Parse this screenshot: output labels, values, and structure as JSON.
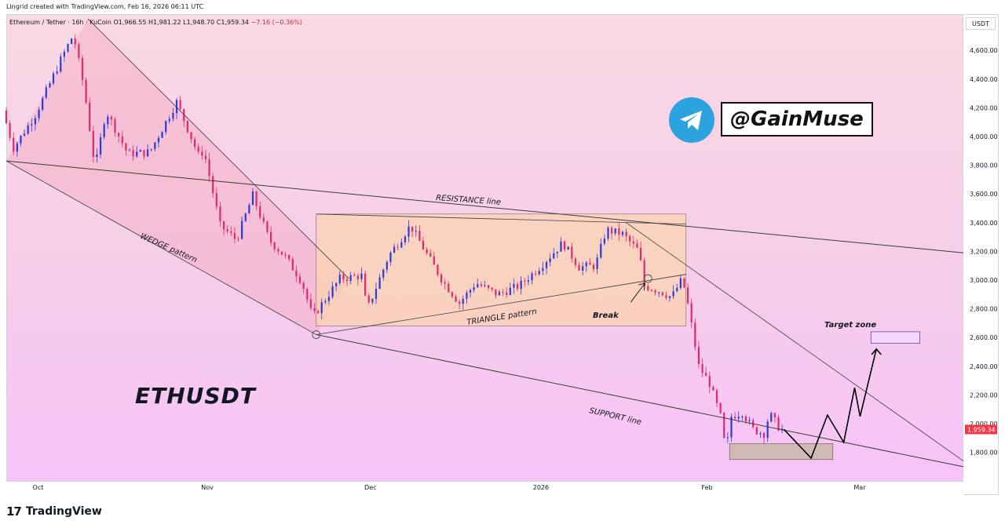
{
  "header": {
    "created_by": "Lingrid created with TradingView.com, Feb 16, 2026 06:11 UTC"
  },
  "symbol": {
    "name": "Ethereum / Tether · 16h · KuCoin",
    "open": "O1,966.55",
    "high": "H1,981.22",
    "low": "L1,948.70",
    "close": "C1,959.34",
    "change": "−7.16 (−0.36%)"
  },
  "price_axis": {
    "unit": "USDT",
    "current_price_label": "1,959.34",
    "current_price_color": "#f23645"
  },
  "telegram": {
    "handle": "@GainMuse",
    "icon": "telegram-icon",
    "color": "#2aa3df"
  },
  "footer": {
    "brand": "TradingView",
    "icon": "tradingview-logo"
  },
  "colors": {
    "up_candle": "#2a3bd6",
    "down_candle": "#e0286a",
    "wedge_fill": "#f4b1c6",
    "triangle_fill": "#fbd3b2",
    "support_box": "#c9b9a8"
  },
  "chart_data": {
    "type": "candlestick",
    "title": "ETHUSDT",
    "ylim": [
      1680,
      4760
    ],
    "y_ticks": [
      1800,
      2000,
      2200,
      2400,
      2600,
      2800,
      3000,
      3200,
      3400,
      3600,
      3800,
      4000,
      4200,
      4400,
      4600
    ],
    "y_tick_labels": [
      "1,800.00",
      "2,000.00",
      "2,200.00",
      "2,400.00",
      "2,600.00",
      "2,800.00",
      "3,000.00",
      "3,200.00",
      "3,400.00",
      "3,600.00",
      "3,800.00",
      "4,000.00",
      "4,200.00",
      "4,400.00",
      "4,600.00"
    ],
    "x_tick_labels": [
      "Oct",
      "Nov",
      "Dec",
      "2026",
      "Feb",
      "Mar"
    ],
    "x_tick_dates": [
      "2025-10-01",
      "2025-11-01",
      "2025-12-01",
      "2026-01-01",
      "2026-02-01",
      "2026-03-01"
    ],
    "x_range": [
      "2025-09-25",
      "2026-03-20"
    ],
    "price_path": [
      {
        "date": "2025-09-25",
        "price": 4180
      },
      {
        "date": "2025-09-27",
        "price": 3920
      },
      {
        "date": "2025-10-01",
        "price": 4150
      },
      {
        "date": "2025-10-06",
        "price": 4560
      },
      {
        "date": "2025-10-08",
        "price": 4710
      },
      {
        "date": "2025-10-10",
        "price": 4330
      },
      {
        "date": "2025-10-12",
        "price": 3780
      },
      {
        "date": "2025-10-14",
        "price": 4180
      },
      {
        "date": "2025-10-18",
        "price": 3880
      },
      {
        "date": "2025-10-22",
        "price": 3890
      },
      {
        "date": "2025-10-27",
        "price": 4240
      },
      {
        "date": "2025-10-31",
        "price": 3870
      },
      {
        "date": "2025-11-01",
        "price": 3900
      },
      {
        "date": "2025-11-04",
        "price": 3380
      },
      {
        "date": "2025-11-07",
        "price": 3280
      },
      {
        "date": "2025-11-10",
        "price": 3590
      },
      {
        "date": "2025-11-13",
        "price": 3280
      },
      {
        "date": "2025-11-16",
        "price": 3160
      },
      {
        "date": "2025-11-19",
        "price": 2990
      },
      {
        "date": "2025-11-21",
        "price": 2740
      },
      {
        "date": "2025-11-23",
        "price": 2850
      },
      {
        "date": "2025-11-26",
        "price": 3010
      },
      {
        "date": "2025-11-30",
        "price": 3030
      },
      {
        "date": "2025-12-01",
        "price": 2790
      },
      {
        "date": "2025-12-05",
        "price": 3170
      },
      {
        "date": "2025-12-09",
        "price": 3380
      },
      {
        "date": "2025-12-12",
        "price": 3180
      },
      {
        "date": "2025-12-15",
        "price": 2990
      },
      {
        "date": "2025-12-18",
        "price": 2840
      },
      {
        "date": "2025-12-21",
        "price": 2980
      },
      {
        "date": "2025-12-25",
        "price": 2900
      },
      {
        "date": "2025-12-29",
        "price": 2960
      },
      {
        "date": "2026-01-02",
        "price": 3100
      },
      {
        "date": "2026-01-06",
        "price": 3260
      },
      {
        "date": "2026-01-09",
        "price": 3090
      },
      {
        "date": "2026-01-12",
        "price": 3100
      },
      {
        "date": "2026-01-14",
        "price": 3350
      },
      {
        "date": "2026-01-17",
        "price": 3320
      },
      {
        "date": "2026-01-20",
        "price": 3200
      },
      {
        "date": "2026-01-21",
        "price": 2960
      },
      {
        "date": "2026-01-24",
        "price": 2920
      },
      {
        "date": "2026-01-26",
        "price": 2880
      },
      {
        "date": "2026-01-28",
        "price": 3010
      },
      {
        "date": "2026-01-29",
        "price": 2830
      },
      {
        "date": "2026-01-31",
        "price": 2400
      },
      {
        "date": "2026-02-02",
        "price": 2280
      },
      {
        "date": "2026-02-04",
        "price": 2050
      },
      {
        "date": "2026-02-05",
        "price": 1800
      },
      {
        "date": "2026-02-06",
        "price": 2050
      },
      {
        "date": "2026-02-08",
        "price": 2080
      },
      {
        "date": "2026-02-10",
        "price": 1960
      },
      {
        "date": "2026-02-12",
        "price": 1930
      },
      {
        "date": "2026-02-13",
        "price": 2070
      },
      {
        "date": "2026-02-15",
        "price": 1960
      }
    ],
    "projection_path": [
      {
        "date": "2026-02-15",
        "price": 1960
      },
      {
        "date": "2026-02-20",
        "price": 1760
      },
      {
        "date": "2026-02-23",
        "price": 2060
      },
      {
        "date": "2026-02-26",
        "price": 1870
      },
      {
        "date": "2026-02-28",
        "price": 2250
      },
      {
        "date": "2026-03-01",
        "price": 2050
      },
      {
        "date": "2026-03-04",
        "price": 2520
      }
    ],
    "drawings": {
      "resistance_line": {
        "label": "RESISTANCE line",
        "from": {
          "date": "2025-09-25",
          "price": 3830
        },
        "to": {
          "date": "2026-03-20",
          "price": 3190
        }
      },
      "support_line": {
        "label": "SUPPORT line",
        "from": {
          "date": "2025-11-21",
          "price": 2620
        },
        "to": {
          "date": "2026-03-20",
          "price": 1700
        }
      },
      "wedge_upper": {
        "from": {
          "date": "2025-10-10",
          "price": 4820
        },
        "to": {
          "date": "2025-11-27",
          "price": 3010
        }
      },
      "wedge_lower": {
        "from": {
          "date": "2025-09-25",
          "price": 3830
        },
        "to": {
          "date": "2025-11-21",
          "price": 2620
        }
      },
      "wedge_label": "WEDGE pattern",
      "triangle_box": {
        "from": {
          "date": "2025-11-21",
          "price": 3460
        },
        "to": {
          "date": "2026-01-28",
          "price": 2680
        }
      },
      "triangle_upper": {
        "from": {
          "date": "2025-11-21",
          "price": 3460
        },
        "to": {
          "date": "2026-01-28",
          "price": 3390
        }
      },
      "triangle_lower": {
        "from": {
          "date": "2025-11-21",
          "price": 2620
        },
        "to": {
          "date": "2026-01-28",
          "price": 3040
        }
      },
      "triangle_label": "TRIANGLE pattern",
      "channel_upper": {
        "from": {
          "date": "2026-01-17",
          "price": 3400
        },
        "to": {
          "date": "2026-03-20",
          "price": 1740
        }
      },
      "break_label": "Break",
      "target_zone": {
        "label": "Target zone",
        "from": {
          "date": "2026-03-03",
          "price": 2640
        },
        "to": {
          "date": "2026-03-12",
          "price": 2560
        }
      },
      "support_zone": {
        "from": {
          "date": "2026-02-05",
          "price": 1860
        },
        "to": {
          "date": "2026-02-24",
          "price": 1750
        }
      }
    }
  }
}
